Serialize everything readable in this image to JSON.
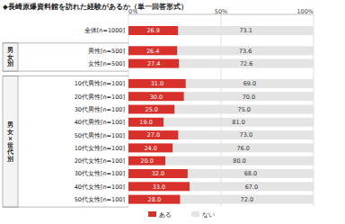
{
  "chart_data": {
    "type": "bar",
    "title": "◆長崎原爆資料館を訪れた経験があるか（単一回答形式）",
    "orientation": "horizontal",
    "stacked": true,
    "data_labels": true,
    "grid": true,
    "legend": "bottom",
    "categories": [
      "全体[n=1000]",
      "男性[n=500]",
      "女性[n=500]",
      "10代男性[n=100]",
      "20代男性[n=100]",
      "30代男性[n=100]",
      "40代男性[n=100]",
      "50代男性[n=100]",
      "10代女性[n=100]",
      "20代女性[n=100]",
      "30代女性[n=100]",
      "40代女性[n=100]",
      "50代女性[n=100]"
    ],
    "row_groups": [
      {
        "label": "男女別",
        "start": 1,
        "size": 2
      },
      {
        "label": "男女×世代別",
        "start": 3,
        "size": 10
      }
    ],
    "series": [
      {
        "name": "ある",
        "color": "#d8312b",
        "values": [
          26.9,
          26.4,
          27.4,
          31.0,
          30.0,
          25.0,
          19.0,
          27.0,
          24.0,
          20.0,
          32.0,
          33.0,
          28.0
        ],
        "value_labels": [
          "26.9",
          "26.4",
          "27.4",
          "31.0",
          "30.0",
          "25.0",
          "19.0",
          "27.0",
          "24.0",
          "20.0",
          "32.0",
          "33.0",
          "28.0"
        ]
      },
      {
        "name": "ない",
        "color": "#e4e4e4",
        "values": [
          73.1,
          73.6,
          72.6,
          69.0,
          70.0,
          75.0,
          81.0,
          73.0,
          76.0,
          80.0,
          68.0,
          67.0,
          72.0
        ],
        "value_labels": [
          "73.1",
          "73.6",
          "72.6",
          "69.0",
          "70.0",
          "75.0",
          "81.0",
          "73.0",
          "76.0",
          "80.0",
          "68.0",
          "67.0",
          "72.0"
        ]
      }
    ],
    "xlim": [
      0,
      100
    ],
    "xticks": [
      {
        "value": 0,
        "label": "0%"
      },
      {
        "value": 50,
        "label": "50%"
      },
      {
        "value": 100,
        "label": "100%"
      }
    ]
  }
}
